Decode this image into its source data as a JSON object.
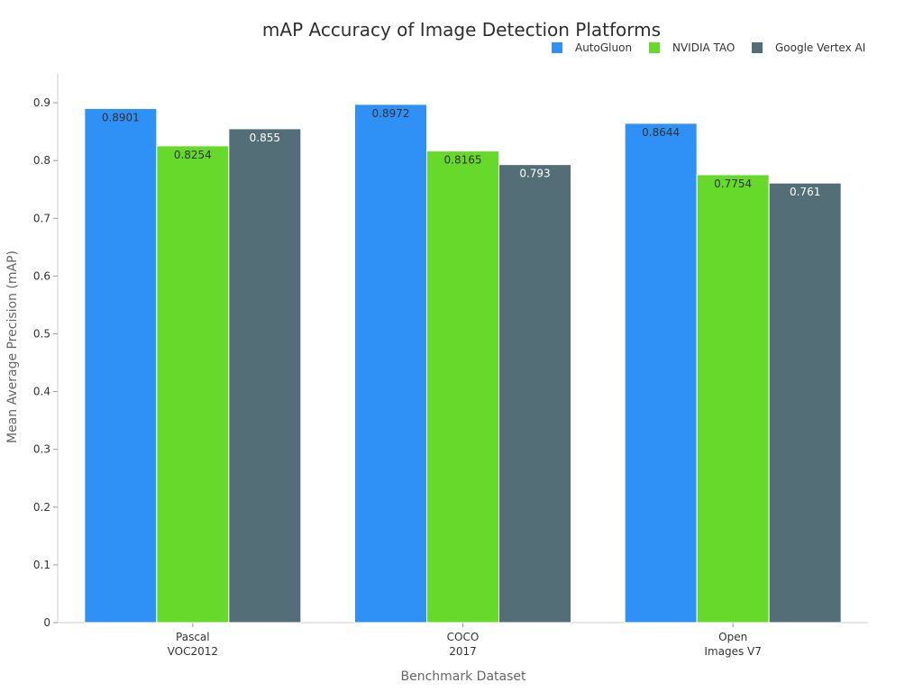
{
  "chart_data": {
    "type": "bar",
    "title": "mAP Accuracy of Image Detection Platforms",
    "xlabel": "Benchmark Dataset",
    "ylabel": "Mean Average Precision (mAP)",
    "categories": [
      [
        "Pascal",
        "VOC2012"
      ],
      [
        "COCO",
        "2017"
      ],
      [
        "Open",
        "Images V7"
      ]
    ],
    "series": [
      {
        "name": "AutoGluon",
        "color": "#2f90f5",
        "label_color": "#333333",
        "values": [
          0.8901,
          0.8972,
          0.8644
        ],
        "labels": [
          "0.8901",
          "0.8972",
          "0.8644"
        ]
      },
      {
        "name": "NVIDIA TAO",
        "color": "#66d92a",
        "label_color": "#333333",
        "values": [
          0.8254,
          0.8165,
          0.7754
        ],
        "labels": [
          "0.8254",
          "0.8165",
          "0.7754"
        ]
      },
      {
        "name": "Google Vertex AI",
        "color": "#546e78",
        "label_color": "#ffffff",
        "values": [
          0.855,
          0.793,
          0.761
        ],
        "labels": [
          "0.855",
          "0.793",
          "0.761"
        ]
      }
    ],
    "ylim": [
      0,
      0.95
    ],
    "yticks": [
      0,
      0.1,
      0.2,
      0.3,
      0.4,
      0.5,
      0.6,
      0.7,
      0.8,
      0.9
    ],
    "ytick_labels": [
      "0",
      "0.1",
      "0.2",
      "0.3",
      "0.4",
      "0.5",
      "0.6",
      "0.7",
      "0.8",
      "0.9"
    ],
    "grid": false,
    "legend_position": "top-right"
  }
}
